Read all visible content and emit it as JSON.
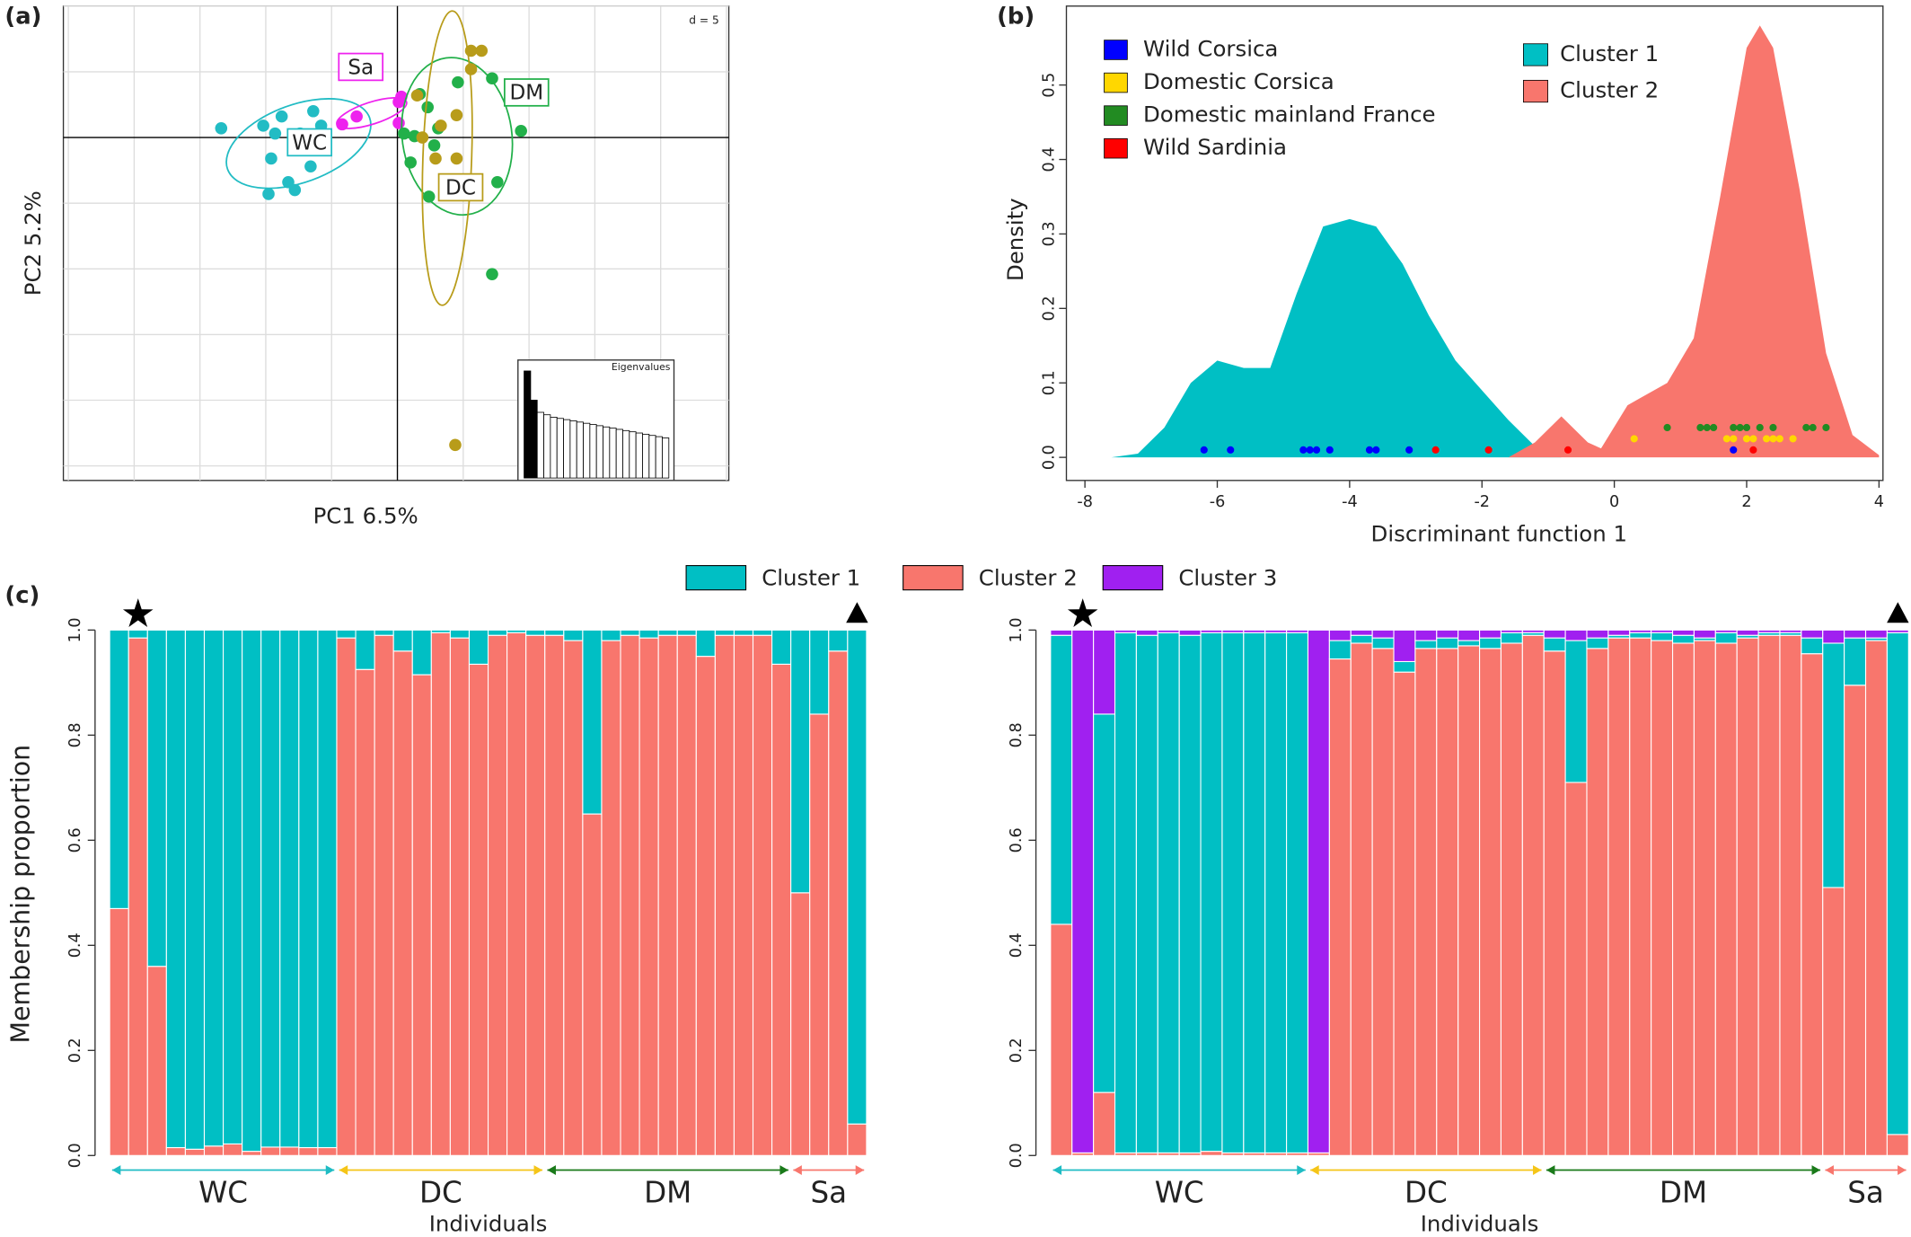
{
  "chart_data": [
    {
      "type": "pca",
      "panel": "(a)",
      "xlabel": "PC1 6.5%",
      "ylabel": "PC2 5.2%",
      "note": "d = 5",
      "xlim": [
        -25.4,
        25.2
      ],
      "ylim": [
        -26.1,
        10
      ],
      "series": [
        {
          "name": "WC",
          "color": "#22bcc4",
          "x": [
            -13.4,
            -10.2,
            -8.8,
            -6.4,
            -5.8,
            -9.3,
            -7.4,
            -9.6,
            -6.6,
            -8.3,
            -7.8,
            -9.8
          ],
          "y": [
            0.7,
            0.9,
            1.6,
            2.0,
            0.9,
            0.3,
            0.3,
            -1.6,
            -2.2,
            -3.4,
            -4.0,
            -4.3
          ]
        },
        {
          "name": "Sa",
          "color": "#ee22ee",
          "x": [
            -4.2,
            -3.1,
            0.1,
            0.3,
            0.1
          ],
          "y": [
            1.0,
            1.6,
            2.7,
            3.1,
            1.1
          ]
        },
        {
          "name": "DM",
          "color": "#22b04a",
          "x": [
            4.6,
            7.2,
            1.7,
            2.3,
            0.5,
            1.3,
            3.1,
            9.4,
            2.8,
            1.0,
            7.6,
            2.4,
            7.2
          ],
          "y": [
            4.2,
            4.5,
            3.3,
            2.3,
            0.3,
            0.1,
            0.7,
            0.5,
            -0.6,
            -1.9,
            -3.4,
            -4.5,
            -10.4
          ]
        },
        {
          "name": "DC",
          "color": "#b89c1a",
          "x": [
            5.6,
            6.4,
            5.6,
            1.5,
            4.5,
            3.3,
            1.9,
            4.5,
            2.9,
            4.4
          ],
          "y": [
            6.6,
            6.6,
            5.2,
            3.2,
            1.7,
            0.9,
            0,
            -1.6,
            -1.6,
            -23.4
          ]
        }
      ],
      "inset": {
        "title": "Eigenvalues",
        "values": [
          88,
          64,
          54,
          52,
          50,
          49,
          48,
          47,
          46,
          45,
          44,
          43,
          42,
          41,
          40,
          39,
          38,
          37,
          36,
          35,
          34,
          33
        ],
        "colors": [
          "#000000",
          "#000000",
          "#ffffff",
          "#ffffff",
          "#ffffff",
          "#ffffff",
          "#ffffff",
          "#ffffff",
          "#ffffff",
          "#ffffff",
          "#ffffff",
          "#ffffff",
          "#ffffff",
          "#ffffff",
          "#ffffff",
          "#ffffff",
          "#ffffff",
          "#ffffff",
          "#ffffff",
          "#ffffff",
          "#ffffff",
          "#ffffff"
        ]
      }
    },
    {
      "type": "density",
      "panel": "(b)",
      "xlabel": "Discriminant function 1",
      "ylabel": "Density",
      "xlim": [
        -8.28,
        4.06
      ],
      "ylim": [
        -0.031,
        0.606
      ],
      "xticks": [
        -8,
        -6,
        -4,
        -2,
        0,
        2,
        4
      ],
      "yticks": [
        {
          "value": 0,
          "label": "0.0"
        },
        0.1,
        0.2,
        0.3,
        0.4,
        0.5
      ],
      "series": [
        {
          "name": "Cluster 1",
          "color": "#00bfc4",
          "x": [
            -7.6,
            -7.2,
            -6.8,
            -6.4,
            -6.0,
            -5.6,
            -5.2,
            -4.8,
            -4.4,
            -4.0,
            -3.6,
            -3.2,
            -2.8,
            -2.4,
            -2.0,
            -1.6,
            -1.2,
            -0.8
          ],
          "values": [
            0,
            0.005,
            0.04,
            0.1,
            0.13,
            0.12,
            0.12,
            0.22,
            0.31,
            0.32,
            0.31,
            0.26,
            0.19,
            0.13,
            0.09,
            0.05,
            0.015,
            0
          ]
        },
        {
          "name": "Cluster 2",
          "color": "#f8766d",
          "x": [
            -1.6,
            -1.2,
            -0.8,
            -0.4,
            -0.2,
            0.2,
            0.4,
            0.8,
            1.2,
            1.6,
            2.0,
            2.2,
            2.4,
            2.8,
            3.2,
            3.6,
            4.0
          ],
          "values": [
            0,
            0.02,
            0.055,
            0.02,
            0.012,
            0.07,
            0.08,
            0.1,
            0.16,
            0.35,
            0.55,
            0.58,
            0.55,
            0.36,
            0.14,
            0.03,
            0.003
          ]
        }
      ],
      "point_series": [
        {
          "name": "Wild Corsica",
          "color": "#0000ff",
          "x": [
            -6.2,
            -5.8,
            -4.7,
            -4.6,
            -4.5,
            -4.3,
            -3.7,
            -3.6,
            -3.1,
            1.8
          ],
          "y": [
            0.01,
            0.01,
            0.01,
            0.01,
            0.01,
            0.01,
            0.01,
            0.01,
            0.01,
            0.01
          ]
        },
        {
          "name": "Domestic Corsica",
          "color": "#ffd700",
          "x": [
            0.3,
            1.7,
            1.8,
            2.0,
            2.1,
            2.3,
            2.4,
            2.5,
            2.7
          ],
          "y": [
            0.025,
            0.025,
            0.025,
            0.025,
            0.025,
            0.025,
            0.025,
            0.025,
            0.025
          ]
        },
        {
          "name": "Domestic mainland France",
          "color": "#228b22",
          "x": [
            0.8,
            1.3,
            1.4,
            1.5,
            1.8,
            1.9,
            2.0,
            2.2,
            2.4,
            2.9,
            3.0,
            3.2
          ],
          "y": [
            0.04,
            0.04,
            0.04,
            0.04,
            0.04,
            0.04,
            0.04,
            0.04,
            0.04,
            0.04,
            0.04,
            0.04
          ]
        },
        {
          "name": "Wild Sardinia",
          "color": "#ff0000",
          "x": [
            -2.7,
            -1.9,
            -0.7,
            2.1
          ],
          "y": [
            0.01,
            0.01,
            0.01,
            0.01
          ]
        }
      ]
    },
    {
      "type": "stacked_bar",
      "panel": "(c)",
      "xlabel": "Individuals",
      "ylabel": "Membership proportion",
      "ylim": [
        0,
        1
      ],
      "yticks": [
        {
          "value": 0,
          "label": "0.0"
        },
        0.2,
        0.4,
        0.6,
        0.8,
        {
          "value": 1,
          "label": "1.0"
        }
      ],
      "series": [
        {
          "color": "#00bfc4",
          "values": [
            0.53,
            0.015,
            0.64,
            0.985,
            0.988,
            0.982,
            0.978,
            0.992,
            0.984,
            0.984,
            0.985,
            0.985,
            0.015,
            0.075,
            0.01,
            0.04,
            0.085,
            0.005,
            0.015,
            0.065,
            0.01,
            0.005,
            0.01,
            0.01,
            0.02,
            0.35,
            0.02,
            0.01,
            0.015,
            0.01,
            0.01,
            0.05,
            0.01,
            0.01,
            0.01,
            0.065,
            0.5,
            0.16,
            0.04,
            0.94
          ]
        },
        {
          "color": "#f8766d",
          "values": [
            0.47,
            0.985,
            0.36,
            0.015,
            0.012,
            0.018,
            0.022,
            0.008,
            0.016,
            0.016,
            0.015,
            0.015,
            0.985,
            0.925,
            0.99,
            0.96,
            0.915,
            0.995,
            0.985,
            0.935,
            0.99,
            0.995,
            0.99,
            0.99,
            0.98,
            0.65,
            0.98,
            0.99,
            0.985,
            0.99,
            0.99,
            0.95,
            0.99,
            0.99,
            0.99,
            0.935,
            0.5,
            0.84,
            0.96,
            0.06
          ]
        }
      ],
      "groups": [
        {
          "label": "WC",
          "color": "#1fbcc4",
          "size": 12
        },
        {
          "label": "DC",
          "color": "#f5c518",
          "size": 11
        },
        {
          "label": "DM",
          "color": "#1a7a1a",
          "size": 13
        },
        {
          "label": "Sa",
          "color": "#f8766d",
          "size": 4
        }
      ],
      "markers": [
        {
          "index": 1,
          "shape": "star"
        },
        {
          "index": 39,
          "shape": "triangle"
        }
      ]
    },
    {
      "type": "stacked_bar",
      "xlabel": "Individuals",
      "ylim": [
        0,
        1
      ],
      "yticks": [
        {
          "value": 0,
          "label": "0.0"
        },
        0.2,
        0.4,
        0.6,
        0.8,
        {
          "value": 1,
          "label": "1.0"
        }
      ],
      "series": [
        {
          "name": "Cluster 1",
          "color": "#00bfc4",
          "values": [
            0.55,
            0,
            0.72,
            0.99,
            0.985,
            0.99,
            0.985,
            0.987,
            0.99,
            0.99,
            0.99,
            0.99,
            0,
            0.035,
            0.015,
            0.02,
            0.02,
            0.015,
            0.02,
            0.01,
            0.02,
            0.02,
            0.005,
            0.025,
            0.27,
            0.02,
            0.005,
            0.01,
            0.015,
            0.015,
            0.005,
            0.02,
            0.005,
            0.005,
            0.005,
            0.03,
            0.465,
            0.09,
            0.005,
            0.955
          ]
        },
        {
          "name": "Cluster 2",
          "color": "#f8766d",
          "values": [
            0.44,
            0.005,
            0.12,
            0.005,
            0.005,
            0.005,
            0.005,
            0.008,
            0.005,
            0.005,
            0.005,
            0.005,
            0.005,
            0.945,
            0.975,
            0.965,
            0.92,
            0.965,
            0.965,
            0.97,
            0.965,
            0.975,
            0.99,
            0.96,
            0.71,
            0.965,
            0.985,
            0.985,
            0.98,
            0.975,
            0.98,
            0.975,
            0.985,
            0.99,
            0.99,
            0.955,
            0.51,
            0.895,
            0.98,
            0.04
          ]
        },
        {
          "name": "Cluster 3",
          "color": "#a020f0",
          "values": [
            0.01,
            0.995,
            0.16,
            0.005,
            0.01,
            0.005,
            0.01,
            0.005,
            0.005,
            0.005,
            0.005,
            0.005,
            0.995,
            0.02,
            0.01,
            0.015,
            0.06,
            0.02,
            0.015,
            0.02,
            0.015,
            0.005,
            0.005,
            0.015,
            0.02,
            0.015,
            0.01,
            0.005,
            0.005,
            0.01,
            0.015,
            0.005,
            0.01,
            0.005,
            0.005,
            0.015,
            0.025,
            0.015,
            0.015,
            0.005
          ]
        }
      ],
      "groups": [
        {
          "label": "WC",
          "color": "#1fbcc4",
          "size": 12
        },
        {
          "label": "DC",
          "color": "#f5c518",
          "size": 11
        },
        {
          "label": "DM",
          "color": "#1a7a1a",
          "size": 13
        },
        {
          "label": "Sa",
          "color": "#f8766d",
          "size": 4
        }
      ],
      "markers": [
        {
          "index": 1,
          "shape": "star"
        },
        {
          "index": 39,
          "shape": "triangle"
        }
      ]
    }
  ]
}
